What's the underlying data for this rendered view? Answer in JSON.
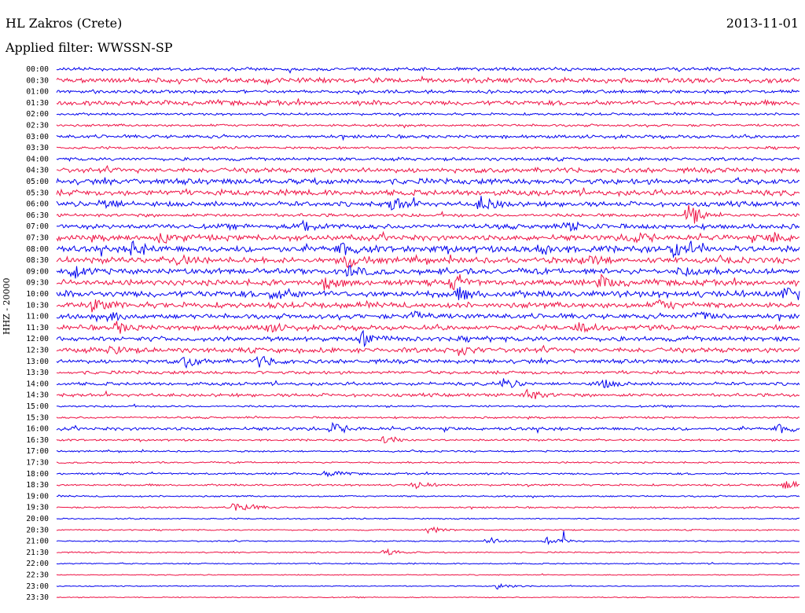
{
  "header": {
    "station": "HL Zakros (Crete)",
    "date": "2013-11-01",
    "filter": "Applied filter: WWSSN-SP",
    "channel_label": "HHZ - 20000"
  },
  "colors": {
    "even_row": "#0000ee",
    "odd_row": "#ee1144"
  },
  "chart_data": {
    "type": "line",
    "title": "HL Zakros (Crete)",
    "subtitle": "Applied filter: WWSSN-SP",
    "ylabel": "HHZ - 20000",
    "xlabel": "",
    "row_labels": [
      "00:00",
      "00:30",
      "01:00",
      "01:30",
      "02:00",
      "02:30",
      "03:00",
      "03:30",
      "04:00",
      "04:30",
      "05:00",
      "05:30",
      "06:00",
      "06:30",
      "07:00",
      "07:30",
      "08:00",
      "08:30",
      "09:00",
      "09:30",
      "10:00",
      "10:30",
      "11:00",
      "11:30",
      "12:00",
      "12:30",
      "13:00",
      "13:30",
      "14:00",
      "14:30",
      "15:00",
      "15:30",
      "16:00",
      "16:30",
      "17:00",
      "17:30",
      "18:00",
      "18:30",
      "19:00",
      "19:30",
      "20:00",
      "20:30",
      "21:00",
      "21:30",
      "22:00",
      "22:30",
      "23:00",
      "23:30"
    ],
    "row_colors": [
      "blue",
      "red"
    ],
    "noise_level": [
      2,
      3,
      2,
      3,
      1.5,
      1.5,
      2,
      1.5,
      2,
      3,
      3.5,
      3.5,
      3,
      2,
      3,
      3.5,
      4,
      3.5,
      3.5,
      3.5,
      4,
      3.5,
      3,
      3,
      3,
      3,
      2.5,
      2,
      2,
      2,
      1.2,
      1.2,
      2,
      1.2,
      1,
      1,
      1.2,
      1.2,
      1,
      1,
      0.8,
      0.8,
      0.8,
      0.8,
      0.8,
      0.6,
      0.6,
      0.6
    ],
    "events": [
      {
        "row": 12,
        "x": 0.06,
        "a": 8
      },
      {
        "row": 12,
        "x": 0.45,
        "a": 9
      },
      {
        "row": 12,
        "x": 0.57,
        "a": 10
      },
      {
        "row": 13,
        "x": 0.85,
        "a": 14
      },
      {
        "row": 14,
        "x": 0.33,
        "a": 8
      },
      {
        "row": 14,
        "x": 0.69,
        "a": 7
      },
      {
        "row": 15,
        "x": 0.14,
        "a": 7
      },
      {
        "row": 15,
        "x": 0.77,
        "a": 8
      },
      {
        "row": 15,
        "x": 0.96,
        "a": 7
      },
      {
        "row": 16,
        "x": 0.1,
        "a": 9
      },
      {
        "row": 16,
        "x": 0.38,
        "a": 8
      },
      {
        "row": 16,
        "x": 0.65,
        "a": 7
      },
      {
        "row": 16,
        "x": 0.83,
        "a": 9
      },
      {
        "row": 17,
        "x": 0.16,
        "a": 7
      },
      {
        "row": 17,
        "x": 0.39,
        "a": 9
      },
      {
        "row": 17,
        "x": 0.71,
        "a": 7
      },
      {
        "row": 18,
        "x": 0.02,
        "a": 8
      },
      {
        "row": 18,
        "x": 0.39,
        "a": 7
      },
      {
        "row": 18,
        "x": 0.84,
        "a": 6
      },
      {
        "row": 19,
        "x": 0.36,
        "a": 7
      },
      {
        "row": 19,
        "x": 0.53,
        "a": 9
      },
      {
        "row": 19,
        "x": 0.73,
        "a": 8
      },
      {
        "row": 20,
        "x": 0.29,
        "a": 8
      },
      {
        "row": 20,
        "x": 0.54,
        "a": 7
      },
      {
        "row": 20,
        "x": 0.98,
        "a": 10
      },
      {
        "row": 21,
        "x": 0.05,
        "a": 7
      },
      {
        "row": 21,
        "x": 0.81,
        "a": 6
      },
      {
        "row": 22,
        "x": 0.07,
        "a": 6
      },
      {
        "row": 22,
        "x": 0.48,
        "a": 6
      },
      {
        "row": 22,
        "x": 0.86,
        "a": 7
      },
      {
        "row": 23,
        "x": 0.08,
        "a": 7
      },
      {
        "row": 23,
        "x": 0.28,
        "a": 6
      },
      {
        "row": 23,
        "x": 0.7,
        "a": 6
      },
      {
        "row": 24,
        "x": 0.41,
        "a": 9
      },
      {
        "row": 25,
        "x": 0.07,
        "a": 6
      },
      {
        "row": 25,
        "x": 0.54,
        "a": 6
      },
      {
        "row": 26,
        "x": 0.17,
        "a": 8
      },
      {
        "row": 26,
        "x": 0.27,
        "a": 8
      },
      {
        "row": 28,
        "x": 0.6,
        "a": 6
      },
      {
        "row": 28,
        "x": 0.73,
        "a": 6
      },
      {
        "row": 29,
        "x": 0.63,
        "a": 8
      },
      {
        "row": 32,
        "x": 0.37,
        "a": 7
      },
      {
        "row": 32,
        "x": 0.97,
        "a": 6
      },
      {
        "row": 33,
        "x": 0.44,
        "a": 5
      },
      {
        "row": 36,
        "x": 0.36,
        "a": 5
      },
      {
        "row": 37,
        "x": 0.48,
        "a": 5
      },
      {
        "row": 37,
        "x": 0.98,
        "a": 6
      },
      {
        "row": 39,
        "x": 0.24,
        "a": 10
      },
      {
        "row": 41,
        "x": 0.5,
        "a": 5
      },
      {
        "row": 42,
        "x": 0.66,
        "a": 7
      },
      {
        "row": 42,
        "x": 0.58,
        "a": 5
      },
      {
        "row": 43,
        "x": 0.44,
        "a": 5
      },
      {
        "row": 46,
        "x": 0.59,
        "a": 5
      }
    ],
    "spike": {
      "row": 42,
      "x": 0.683,
      "a": 28
    }
  }
}
